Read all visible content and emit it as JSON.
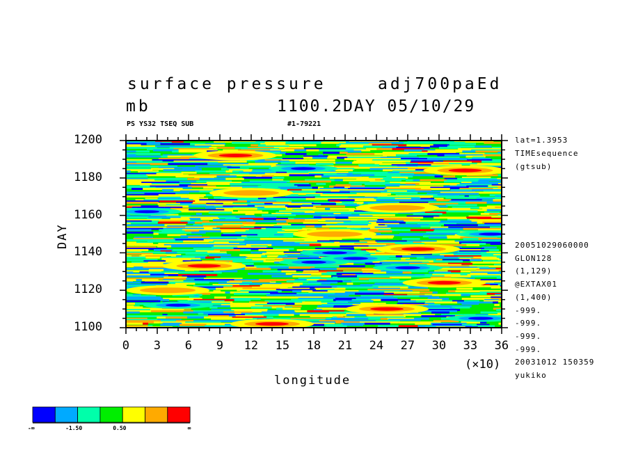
{
  "header": {
    "line1_left": "surface pressure",
    "line1_right": "adj700paEd",
    "line2_left": "mb",
    "line2_right": "1100.2DAY 05/10/29",
    "sub_left": "PS YS32 TSEQ SUB",
    "sub_right": "#1-79221"
  },
  "info_panel": {
    "top": [
      "lat=1.3953",
      "TIMEsequence",
      "(gtsub)"
    ],
    "bottom": [
      "20051029060000",
      "GLON128",
      "(1,129)",
      "@EXTAX01",
      "(1,400)",
      "-999.",
      "-999.",
      "-999.",
      "-999.",
      "20031012 150359",
      "yukiko"
    ]
  },
  "chart_data": {
    "type": "heatmap",
    "title": "surface pressure",
    "xlabel": "longitude",
    "ylabel": "DAY",
    "x_multiplier": "(×10)",
    "xlim": [
      0,
      36
    ],
    "ylim": [
      1100,
      1200
    ],
    "x_ticks": [
      "0",
      "3",
      "6",
      "9",
      "12",
      "15",
      "18",
      "21",
      "24",
      "27",
      "30",
      "33",
      "36"
    ],
    "y_ticks": [
      "1100",
      "1120",
      "1140",
      "1160",
      "1180",
      "1200"
    ],
    "colorbar": {
      "colors": [
        "#0000ff",
        "#00aaff",
        "#00ffaa",
        "#00ee00",
        "#ffff00",
        "#ffaa00",
        "#ff0000"
      ],
      "labels": [
        {
          "text": "-∞",
          "boundary": 0
        },
        {
          "text": "-1.50",
          "boundary": 2
        },
        {
          "text": "0.50",
          "boundary": 4
        },
        {
          "text": "∞",
          "boundary": 7
        }
      ]
    },
    "features": [
      {
        "x": 7.5,
        "y": 1133,
        "level": 6
      },
      {
        "x": 10.5,
        "y": 1192,
        "level": 6
      },
      {
        "x": 14,
        "y": 1102,
        "level": 6
      },
      {
        "x": 32.5,
        "y": 1184,
        "level": 6
      },
      {
        "x": 25,
        "y": 1110,
        "level": 6
      },
      {
        "x": 30.5,
        "y": 1124,
        "level": 6
      },
      {
        "x": 28,
        "y": 1142,
        "level": 6
      },
      {
        "x": 4,
        "y": 1120,
        "level": 5
      },
      {
        "x": 20,
        "y": 1150,
        "level": 5
      },
      {
        "x": 26,
        "y": 1164,
        "level": 5
      },
      {
        "x": 12,
        "y": 1172,
        "level": 5
      },
      {
        "x": 18,
        "y": 1135,
        "level": 0
      },
      {
        "x": 20,
        "y": 1140,
        "level": 0
      },
      {
        "x": 22,
        "y": 1137,
        "level": 0
      },
      {
        "x": 2,
        "y": 1162,
        "level": 0
      },
      {
        "x": 34,
        "y": 1105,
        "level": 0
      },
      {
        "x": 27,
        "y": 1132,
        "level": 0
      },
      {
        "x": 5,
        "y": 1112,
        "level": 0
      },
      {
        "x": 35,
        "y": 1150,
        "level": 0
      },
      {
        "x": 17,
        "y": 1185,
        "level": 0
      }
    ]
  }
}
